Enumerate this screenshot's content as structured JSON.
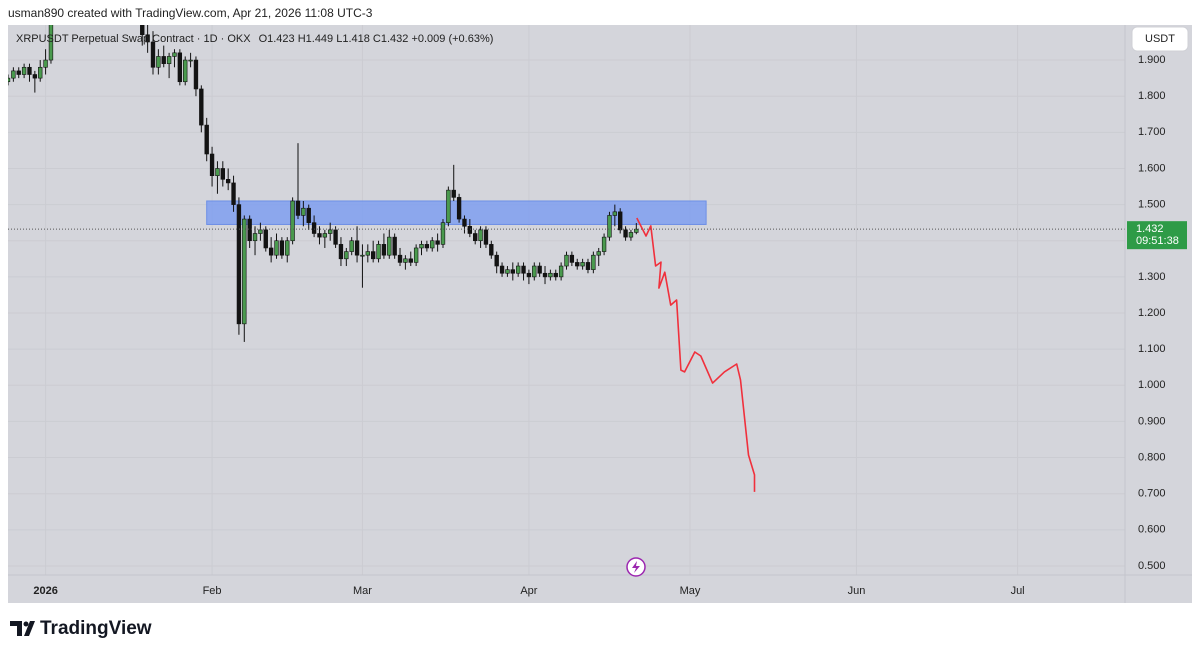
{
  "header": "usman890 created with TradingView.com, Apr 21, 2026 11:08 UTC-3",
  "currency_button": "USDT",
  "brand": "TradingView",
  "chart_data": {
    "type": "candlestick",
    "title": "XRPUSDT Perpetual Swap Contract · 1D · OKX",
    "subtitle": "O1.423  H1.449  L1.418  C1.432  +0.009 (+0.63%)",
    "x": [
      -6,
      -5,
      -4,
      -3,
      -2,
      -1,
      0,
      1,
      2,
      19,
      20,
      21,
      22,
      23,
      24,
      25,
      26,
      27,
      28,
      29,
      30,
      31,
      32,
      33,
      34,
      35,
      36,
      37,
      38,
      39,
      40,
      41,
      42,
      43,
      44,
      45,
      46,
      47,
      48,
      49,
      50,
      51,
      52,
      53,
      54,
      55,
      56,
      57,
      58,
      59,
      60,
      61,
      62,
      63,
      64,
      65,
      66,
      67,
      68,
      69,
      70,
      71,
      72,
      73,
      74,
      75,
      76,
      77,
      78,
      79,
      80,
      81,
      82,
      83,
      84,
      85,
      86,
      87,
      88,
      89,
      90,
      91,
      92,
      93,
      94,
      95,
      96,
      97,
      98,
      99,
      100,
      101,
      102,
      103,
      104,
      105,
      106,
      107,
      108,
      109,
      110,
      111
    ],
    "open": [
      1.84,
      1.85,
      1.87,
      1.86,
      1.88,
      1.86,
      1.85,
      1.88,
      1.9,
      2.0,
      1.97,
      1.95,
      1.88,
      1.91,
      1.89,
      1.91,
      1.92,
      1.84,
      1.9,
      1.9,
      1.82,
      1.72,
      1.64,
      1.58,
      1.6,
      1.57,
      1.56,
      1.5,
      1.17,
      1.46,
      1.4,
      1.42,
      1.43,
      1.38,
      1.36,
      1.4,
      1.36,
      1.4,
      1.51,
      1.47,
      1.49,
      1.45,
      1.42,
      1.41,
      1.42,
      1.43,
      1.39,
      1.35,
      1.37,
      1.4,
      1.36,
      1.36,
      1.37,
      1.35,
      1.39,
      1.36,
      1.41,
      1.36,
      1.34,
      1.35,
      1.34,
      1.38,
      1.39,
      1.38,
      1.4,
      1.39,
      1.45,
      1.54,
      1.52,
      1.46,
      1.44,
      1.42,
      1.4,
      1.43,
      1.39,
      1.36,
      1.33,
      1.31,
      1.32,
      1.31,
      1.33,
      1.31,
      1.3,
      1.33,
      1.31,
      1.3,
      1.31,
      1.3,
      1.33,
      1.36,
      1.34,
      1.33,
      1.34,
      1.32,
      1.36,
      1.37,
      1.41,
      1.47,
      1.48,
      1.43,
      1.41,
      1.423
    ],
    "high": [
      1.86,
      1.88,
      1.88,
      1.89,
      1.89,
      1.87,
      1.9,
      1.93,
      2.02,
      2.02,
      2.0,
      1.98,
      1.93,
      1.94,
      1.92,
      1.93,
      1.93,
      1.91,
      1.92,
      1.91,
      1.83,
      1.74,
      1.66,
      1.62,
      1.62,
      1.6,
      1.58,
      1.52,
      1.47,
      1.47,
      1.44,
      1.45,
      1.44,
      1.41,
      1.42,
      1.41,
      1.41,
      1.52,
      1.67,
      1.51,
      1.5,
      1.47,
      1.44,
      1.43,
      1.45,
      1.44,
      1.41,
      1.38,
      1.41,
      1.44,
      1.39,
      1.39,
      1.4,
      1.4,
      1.42,
      1.43,
      1.42,
      1.38,
      1.36,
      1.37,
      1.39,
      1.4,
      1.4,
      1.41,
      1.42,
      1.46,
      1.55,
      1.61,
      1.53,
      1.47,
      1.46,
      1.43,
      1.44,
      1.44,
      1.4,
      1.37,
      1.34,
      1.33,
      1.34,
      1.34,
      1.34,
      1.32,
      1.34,
      1.34,
      1.33,
      1.32,
      1.32,
      1.34,
      1.37,
      1.37,
      1.35,
      1.35,
      1.35,
      1.37,
      1.38,
      1.42,
      1.48,
      1.5,
      1.49,
      1.44,
      1.43,
      1.449
    ],
    "low": [
      1.83,
      1.84,
      1.85,
      1.85,
      1.84,
      1.81,
      1.84,
      1.86,
      1.89,
      1.94,
      1.92,
      1.86,
      1.86,
      1.88,
      1.85,
      1.88,
      1.83,
      1.83,
      1.88,
      1.8,
      1.7,
      1.62,
      1.55,
      1.53,
      1.55,
      1.54,
      1.48,
      1.14,
      1.12,
      1.38,
      1.36,
      1.4,
      1.37,
      1.34,
      1.35,
      1.35,
      1.34,
      1.39,
      1.46,
      1.44,
      1.43,
      1.41,
      1.39,
      1.38,
      1.4,
      1.38,
      1.33,
      1.33,
      1.36,
      1.34,
      1.27,
      1.34,
      1.34,
      1.34,
      1.35,
      1.35,
      1.35,
      1.33,
      1.32,
      1.33,
      1.33,
      1.36,
      1.37,
      1.37,
      1.37,
      1.38,
      1.44,
      1.51,
      1.45,
      1.42,
      1.41,
      1.39,
      1.38,
      1.38,
      1.35,
      1.31,
      1.3,
      1.3,
      1.29,
      1.3,
      1.29,
      1.28,
      1.29,
      1.3,
      1.28,
      1.29,
      1.29,
      1.29,
      1.32,
      1.33,
      1.32,
      1.32,
      1.31,
      1.31,
      1.33,
      1.36,
      1.4,
      1.44,
      1.42,
      1.4,
      1.4,
      1.418
    ],
    "close": [
      1.85,
      1.87,
      1.86,
      1.88,
      1.86,
      1.85,
      1.88,
      1.9,
      2.0,
      1.97,
      1.95,
      1.88,
      1.91,
      1.89,
      1.91,
      1.92,
      1.84,
      1.9,
      1.9,
      1.82,
      1.72,
      1.64,
      1.58,
      1.6,
      1.57,
      1.56,
      1.5,
      1.17,
      1.46,
      1.4,
      1.42,
      1.43,
      1.38,
      1.36,
      1.4,
      1.36,
      1.4,
      1.51,
      1.47,
      1.49,
      1.45,
      1.42,
      1.41,
      1.42,
      1.43,
      1.39,
      1.35,
      1.37,
      1.4,
      1.36,
      1.36,
      1.37,
      1.35,
      1.39,
      1.36,
      1.41,
      1.36,
      1.34,
      1.35,
      1.34,
      1.38,
      1.39,
      1.38,
      1.4,
      1.39,
      1.45,
      1.54,
      1.52,
      1.46,
      1.44,
      1.42,
      1.4,
      1.43,
      1.39,
      1.36,
      1.33,
      1.31,
      1.32,
      1.31,
      1.33,
      1.31,
      1.3,
      1.33,
      1.31,
      1.3,
      1.31,
      1.3,
      1.33,
      1.36,
      1.34,
      1.33,
      1.34,
      1.32,
      1.36,
      1.37,
      1.41,
      1.47,
      1.48,
      1.43,
      1.41,
      1.423,
      1.432
    ],
    "up_color": "#4a9a4e",
    "down_color": "#131313",
    "xlim": [
      -6,
      202
    ],
    "ylim": [
      0.475,
      1.997
    ],
    "xticks": [
      {
        "value": 1,
        "label": "2026"
      },
      {
        "value": 32,
        "label": "Feb"
      },
      {
        "value": 60,
        "label": "Mar"
      },
      {
        "value": 91,
        "label": "Apr"
      },
      {
        "value": 121,
        "label": "May"
      },
      {
        "value": 152,
        "label": "Jun"
      },
      {
        "value": 182,
        "label": "Jul"
      }
    ],
    "yticks": [
      {
        "value": 0.5,
        "label": "0.500"
      },
      {
        "value": 0.6,
        "label": "0.600"
      },
      {
        "value": 0.7,
        "label": "0.700"
      },
      {
        "value": 0.8,
        "label": "0.800"
      },
      {
        "value": 0.9,
        "label": "0.900"
      },
      {
        "value": 1.0,
        "label": "1.000"
      },
      {
        "value": 1.1,
        "label": "1.100"
      },
      {
        "value": 1.2,
        "label": "1.200"
      },
      {
        "value": 1.3,
        "label": "1.300"
      },
      {
        "value": 1.4,
        "label": "1.400"
      },
      {
        "value": 1.5,
        "label": "1.500"
      },
      {
        "value": 1.6,
        "label": "1.600"
      },
      {
        "value": 1.7,
        "label": "1.700"
      },
      {
        "value": 1.8,
        "label": "1.800"
      },
      {
        "value": 1.9,
        "label": "1.900"
      }
    ],
    "grid": true,
    "zone": {
      "x": [
        31,
        124
      ],
      "y": [
        1.445,
        1.51
      ],
      "color": "#7f9ff0"
    },
    "projection": {
      "color": "#f0303c",
      "x": [
        111.1,
        112.8,
        113.7,
        114.6,
        115.6,
        115.2,
        116.3,
        117.4,
        118.5,
        119.3,
        120.0,
        121.9,
        123.0,
        125.2,
        127.4,
        129.7,
        130.4,
        131.9,
        133.0,
        133.0
      ],
      "y": [
        1.463,
        1.413,
        1.441,
        1.33,
        1.341,
        1.269,
        1.313,
        1.222,
        1.236,
        1.042,
        1.037,
        1.092,
        1.081,
        1.006,
        1.037,
        1.059,
        1.015,
        0.807,
        0.752,
        0.705
      ]
    },
    "last_price_color": "#2e9b47",
    "countdown": "09:51:38"
  }
}
